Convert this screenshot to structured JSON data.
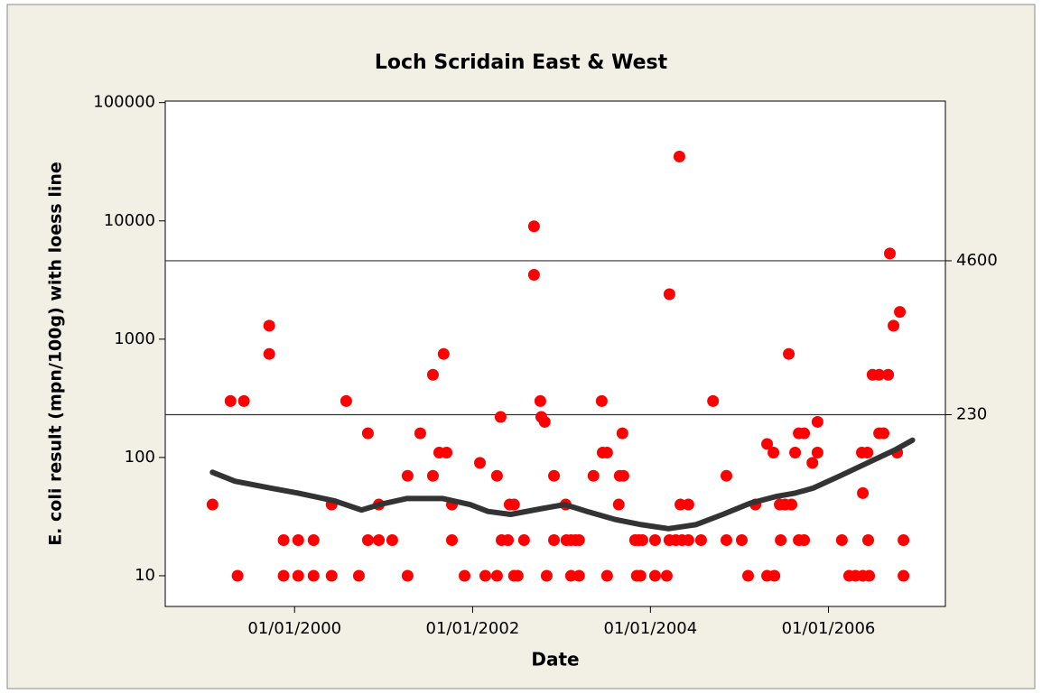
{
  "chart_data": {
    "type": "scatter",
    "title": "Loch Scridain East & West",
    "x_label": "Date",
    "y_label": "E. coli result (mpn/100g) with loess line",
    "log_y": true,
    "xlim": [
      "19/07/1998",
      "26/04/2007"
    ],
    "xticks": [
      "01/01/2000",
      "01/01/2002",
      "01/01/2004",
      "01/01/2006"
    ],
    "ylim": [
      5.5,
      103000
    ],
    "yticks": [
      10,
      100,
      1000,
      10000,
      100000
    ],
    "reference_lines": [
      230,
      4600
    ],
    "series": [
      {
        "type": "scatter",
        "color": "#ff0000",
        "x": [
          "29/01/1999",
          "13/04/1999",
          "12/05/1999",
          "07/06/1999",
          "19/09/1999",
          "19/09/1999",
          "17/11/1999",
          "17/11/1999",
          "16/01/2000",
          "16/01/2000",
          "19/03/2000",
          "19/03/2000",
          "01/06/2000",
          "01/06/2000",
          "31/07/2000",
          "21/09/2000",
          "28/10/2000",
          "28/10/2000",
          "12/12/2000",
          "12/12/2000",
          "05/02/2001",
          "09/04/2001",
          "09/04/2001",
          "31/05/2001",
          "22/07/2001",
          "22/07/2001",
          "17/08/2001",
          "04/09/2001",
          "16/09/2001",
          "08/10/2001",
          "08/10/2001",
          "29/11/2001",
          "31/01/2002",
          "22/02/2002",
          "11/04/2002",
          "11/04/2002",
          "26/04/2002",
          "30/04/2002",
          "26/05/2002",
          "02/06/2002",
          "20/06/2002",
          "20/06/2002",
          "05/07/2002",
          "31/07/2002",
          "10/09/2002",
          "10/09/2002",
          "06/10/2002",
          "10/10/2002",
          "24/10/2002",
          "01/11/2002",
          "01/12/2002",
          "01/12/2002",
          "18/01/2003",
          "21/01/2003",
          "09/02/2003",
          "09/02/2003",
          "27/02/2003",
          "14/03/2003",
          "14/03/2003",
          "12/05/2003",
          "15/06/2003",
          "19/06/2003",
          "07/07/2003",
          "07/07/2003",
          "24/08/2003",
          "28/08/2003",
          "08/09/2003",
          "12/09/2003",
          "30/10/2003",
          "06/11/2003",
          "14/11/2003",
          "21/11/2003",
          "29/11/2003",
          "20/01/2004",
          "20/01/2004",
          "08/03/2004",
          "19/03/2004",
          "19/03/2004",
          "14/04/2004",
          "29/04/2004",
          "03/05/2004",
          "10/05/2004",
          "05/06/2004",
          "05/06/2004",
          "27/07/2004",
          "14/09/2004",
          "08/11/2004",
          "08/11/2004",
          "10/01/2005",
          "05/02/2005",
          "07/03/2005",
          "24/04/2005",
          "24/04/2005",
          "20/05/2005",
          "24/05/2005",
          "15/06/2005",
          "19/06/2005",
          "07/07/2005",
          "22/07/2005",
          "02/08/2005",
          "17/08/2005",
          "01/09/2005",
          "01/09/2005",
          "23/09/2005",
          "23/09/2005",
          "27/10/2005",
          "17/11/2005",
          "17/11/2005",
          "25/02/2006",
          "27/03/2006",
          "22/04/2006",
          "18/05/2006",
          "22/05/2006",
          "22/05/2006",
          "10/06/2006",
          "13/06/2006",
          "17/06/2006",
          "01/07/2006",
          "28/07/2006",
          "28/07/2006",
          "15/08/2006",
          "03/09/2006",
          "10/09/2006",
          "25/09/2006",
          "10/10/2006",
          "21/10/2006",
          "05/11/2006",
          "05/11/2006"
        ],
        "values": [
          40,
          300,
          10,
          300,
          750,
          1300,
          20,
          10,
          20,
          10,
          20,
          10,
          40,
          10,
          300,
          10,
          160,
          20,
          40,
          20,
          20,
          70,
          10,
          160,
          500,
          70,
          110,
          750,
          110,
          40,
          20,
          10,
          90,
          10,
          70,
          10,
          220,
          20,
          20,
          40,
          40,
          10,
          10,
          20,
          9000,
          3500,
          300,
          220,
          200,
          10,
          70,
          20,
          40,
          20,
          20,
          10,
          20,
          20,
          10,
          70,
          300,
          110,
          110,
          10,
          40,
          70,
          160,
          70,
          20,
          10,
          20,
          10,
          20,
          20,
          10,
          10,
          2400,
          20,
          20,
          35000,
          40,
          20,
          40,
          20,
          20,
          300,
          70,
          20,
          20,
          10,
          40,
          130,
          10,
          110,
          10,
          40,
          20,
          40,
          750,
          40,
          110,
          160,
          20,
          160,
          20,
          90,
          200,
          110,
          20,
          10,
          10,
          110,
          50,
          10,
          110,
          20,
          10,
          500,
          500,
          160,
          160,
          500,
          5300,
          1300,
          110,
          1700,
          20,
          10
        ]
      },
      {
        "type": "line",
        "color": "#333333",
        "x": [
          "29/01/1999",
          "01/05/1999",
          "27/09/1999",
          "16/01/2000",
          "12/06/2000",
          "02/10/2000",
          "15/12/2000",
          "05/04/2001",
          "01/09/2001",
          "21/12/2001",
          "05/03/2002",
          "06/06/2002",
          "13/10/2002",
          "14/01/2003",
          "16/04/2003",
          "06/08/2003",
          "25/11/2003",
          "15/03/2004",
          "05/07/2004",
          "24/10/2004",
          "13/02/2005",
          "04/06/2005",
          "17/08/2005",
          "30/10/2005",
          "18/02/2006",
          "10/06/2006",
          "29/09/2006",
          "12/12/2006"
        ],
        "values": [
          75,
          63,
          55,
          50,
          43,
          36,
          40,
          45,
          45,
          40,
          35,
          33,
          37,
          40,
          35,
          30,
          27,
          25,
          27,
          33,
          41,
          47,
          50,
          55,
          70,
          90,
          115,
          140
        ]
      }
    ]
  }
}
